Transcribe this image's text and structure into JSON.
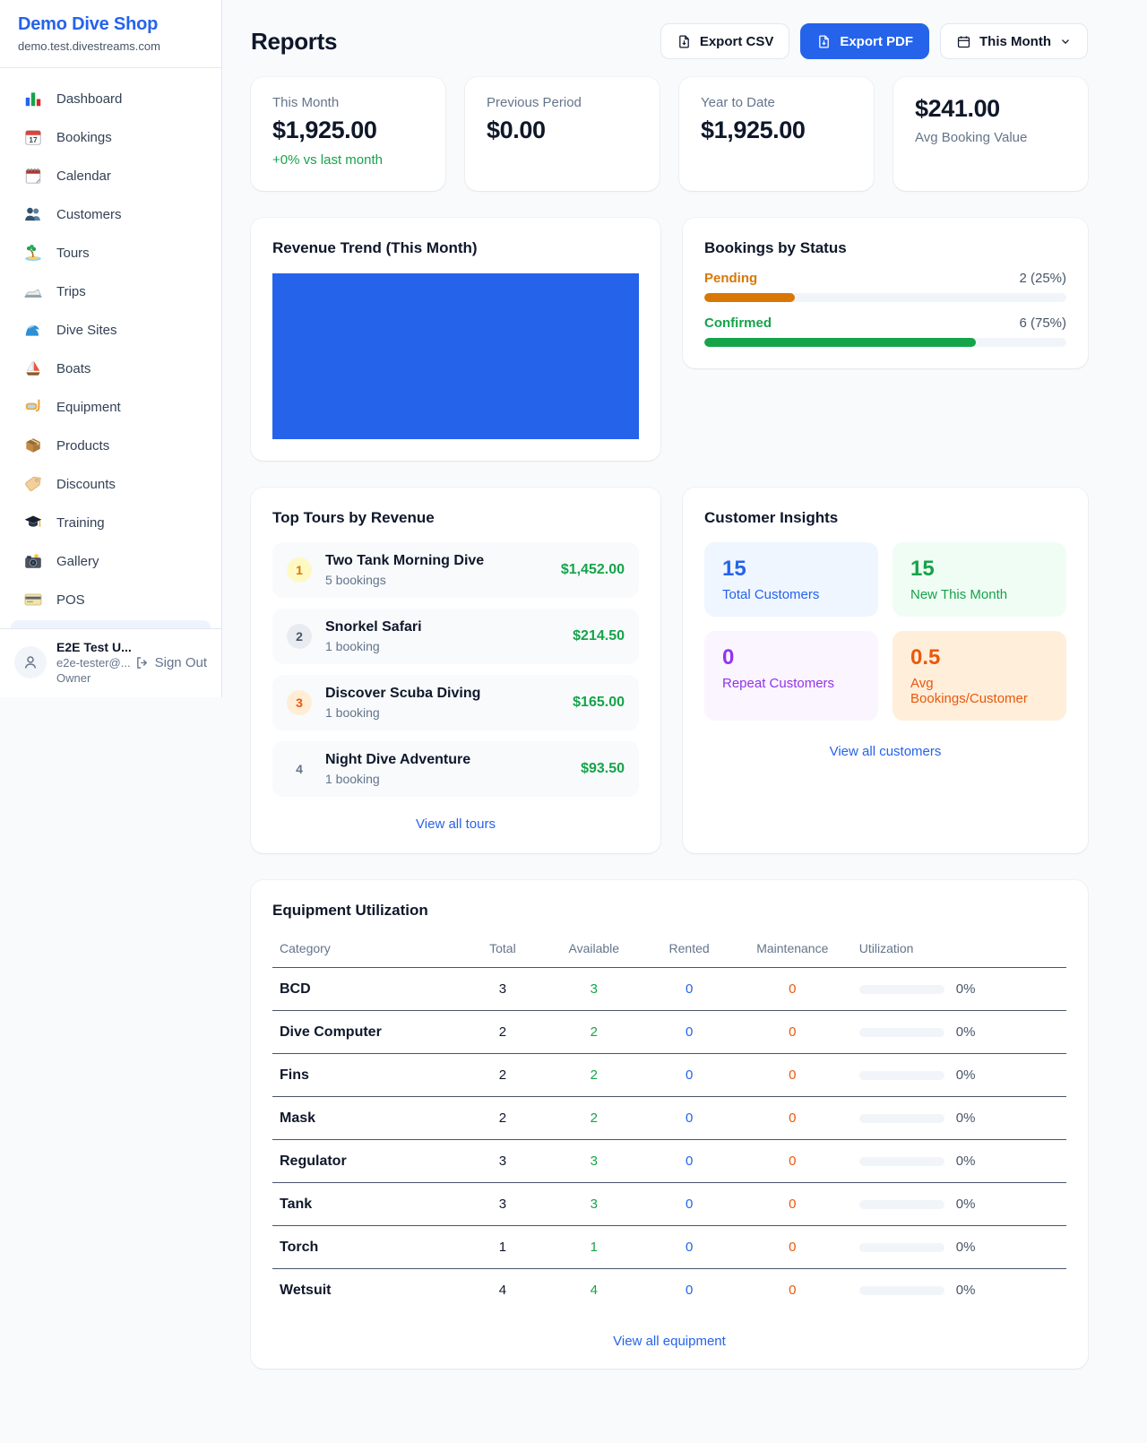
{
  "colors": {
    "accent": "#2563eb",
    "success": "#16a34a",
    "pending_orange": "#d97706",
    "maintenance_orange": "#ea580c",
    "purple": "#9333ea"
  },
  "sidebar": {
    "shop_name": "Demo Dive Shop",
    "domain": "demo.test.divestreams.com",
    "nav": [
      {
        "label": "Dashboard",
        "icon": "bar-chart-icon"
      },
      {
        "label": "Bookings",
        "icon": "calendar-date-icon"
      },
      {
        "label": "Calendar",
        "icon": "spiral-calendar-icon"
      },
      {
        "label": "Customers",
        "icon": "users-icon"
      },
      {
        "label": "Tours",
        "icon": "island-icon"
      },
      {
        "label": "Trips",
        "icon": "speedboat-icon"
      },
      {
        "label": "Dive Sites",
        "icon": "wave-icon"
      },
      {
        "label": "Boats",
        "icon": "sailboat-icon"
      },
      {
        "label": "Equipment",
        "icon": "diving-mask-icon"
      },
      {
        "label": "Products",
        "icon": "package-icon"
      },
      {
        "label": "Discounts",
        "icon": "tag-icon"
      },
      {
        "label": "Training",
        "icon": "graduation-cap-icon"
      },
      {
        "label": "Gallery",
        "icon": "camera-icon"
      },
      {
        "label": "POS",
        "icon": "credit-card-icon"
      }
    ],
    "user": {
      "name": "E2E Test U...",
      "email": "e2e-tester@...",
      "role": "Owner",
      "sign_out_label": "Sign Out"
    }
  },
  "header": {
    "title": "Reports",
    "export_csv_label": "Export CSV",
    "export_pdf_label": "Export PDF",
    "period_label": "This Month"
  },
  "stats": [
    {
      "label": "This Month",
      "value": "$1,925.00",
      "sub": "+0% vs last month",
      "layout": "label-first"
    },
    {
      "label": "Previous Period",
      "value": "$0.00",
      "layout": "label-first"
    },
    {
      "label": "Year to Date",
      "value": "$1,925.00",
      "layout": "label-first"
    },
    {
      "label": "Avg Booking Value",
      "value": "$241.00",
      "layout": "value-first"
    }
  ],
  "revenue_trend": {
    "title": "Revenue Trend (This Month)",
    "bar_color": "#2563eb"
  },
  "bookings_by_status": {
    "title": "Bookings by Status",
    "rows": [
      {
        "label": "Pending",
        "value": "2 (25%)",
        "percent": 25,
        "color": "#d97706"
      },
      {
        "label": "Confirmed",
        "value": "6 (75%)",
        "percent": 75,
        "color": "#16a34a"
      }
    ]
  },
  "top_tours": {
    "title": "Top Tours by Revenue",
    "items": [
      {
        "rank": "1",
        "name": "Two Tank Morning Dive",
        "bookings": "5 bookings",
        "revenue": "$1,452.00"
      },
      {
        "rank": "2",
        "name": "Snorkel Safari",
        "bookings": "1 booking",
        "revenue": "$214.50"
      },
      {
        "rank": "3",
        "name": "Discover Scuba Diving",
        "bookings": "1 booking",
        "revenue": "$165.00"
      },
      {
        "rank": "4",
        "name": "Night Dive Adventure",
        "bookings": "1 booking",
        "revenue": "$93.50"
      }
    ],
    "view_all_label": "View all tours"
  },
  "customer_insights": {
    "title": "Customer Insights",
    "tiles": [
      {
        "value": "15",
        "label": "Total Customers",
        "theme": "blue"
      },
      {
        "value": "15",
        "label": "New This Month",
        "theme": "green"
      },
      {
        "value": "0",
        "label": "Repeat Customers",
        "theme": "purple"
      },
      {
        "value": "0.5",
        "label": "Avg Bookings/Customer",
        "theme": "orange"
      }
    ],
    "view_all_label": "View all customers"
  },
  "equipment": {
    "title": "Equipment Utilization",
    "columns": [
      "Category",
      "Total",
      "Available",
      "Rented",
      "Maintenance",
      "Utilization"
    ],
    "rows": [
      {
        "category": "BCD",
        "total": "3",
        "available": "3",
        "rented": "0",
        "maintenance": "0",
        "utilization": "0%",
        "utilization_percent": 0
      },
      {
        "category": "Dive Computer",
        "total": "2",
        "available": "2",
        "rented": "0",
        "maintenance": "0",
        "utilization": "0%",
        "utilization_percent": 0
      },
      {
        "category": "Fins",
        "total": "2",
        "available": "2",
        "rented": "0",
        "maintenance": "0",
        "utilization": "0%",
        "utilization_percent": 0
      },
      {
        "category": "Mask",
        "total": "2",
        "available": "2",
        "rented": "0",
        "maintenance": "0",
        "utilization": "0%",
        "utilization_percent": 0
      },
      {
        "category": "Regulator",
        "total": "3",
        "available": "3",
        "rented": "0",
        "maintenance": "0",
        "utilization": "0%",
        "utilization_percent": 0
      },
      {
        "category": "Tank",
        "total": "3",
        "available": "3",
        "rented": "0",
        "maintenance": "0",
        "utilization": "0%",
        "utilization_percent": 0
      },
      {
        "category": "Torch",
        "total": "1",
        "available": "1",
        "rented": "0",
        "maintenance": "0",
        "utilization": "0%",
        "utilization_percent": 0
      },
      {
        "category": "Wetsuit",
        "total": "4",
        "available": "4",
        "rented": "0",
        "maintenance": "0",
        "utilization": "0%",
        "utilization_percent": 0
      }
    ],
    "view_all_label": "View all equipment"
  }
}
